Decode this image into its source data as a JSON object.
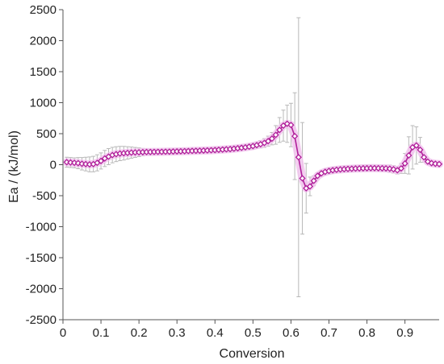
{
  "chart_data": {
    "type": "line",
    "title": "",
    "xlabel": "Conversion",
    "ylabel": "Ea / (kJ/mol)",
    "xlim": [
      0,
      0.99
    ],
    "ylim": [
      -2500,
      2500
    ],
    "x_ticks": [
      "0",
      "0.1",
      "0.2",
      "0.3",
      "0.4",
      "0.5",
      "0.6",
      "0.7",
      "0.8",
      "0.9"
    ],
    "y_ticks": [
      "2500",
      "2000",
      "1500",
      "1000",
      "500",
      "0",
      "-500",
      "-1000",
      "-1500",
      "-2000",
      "-2500"
    ],
    "grid": false,
    "legend": "none",
    "series": [
      {
        "x": [
          0.01,
          0.02,
          0.03,
          0.04,
          0.05,
          0.06,
          0.07,
          0.08,
          0.09,
          0.1,
          0.11,
          0.12,
          0.13,
          0.14,
          0.15,
          0.16,
          0.17,
          0.18,
          0.19,
          0.2,
          0.21,
          0.22,
          0.23,
          0.24,
          0.25,
          0.26,
          0.27,
          0.28,
          0.29,
          0.3,
          0.31,
          0.32,
          0.33,
          0.34,
          0.35,
          0.36,
          0.37,
          0.38,
          0.39,
          0.4,
          0.41,
          0.42,
          0.43,
          0.44,
          0.45,
          0.46,
          0.47,
          0.48,
          0.49,
          0.5,
          0.51,
          0.52,
          0.53,
          0.54,
          0.55,
          0.56,
          0.57,
          0.58,
          0.59,
          0.6,
          0.61,
          0.62,
          0.63,
          0.64,
          0.65,
          0.66,
          0.67,
          0.68,
          0.69,
          0.7,
          0.71,
          0.72,
          0.73,
          0.74,
          0.75,
          0.76,
          0.77,
          0.78,
          0.79,
          0.8,
          0.81,
          0.82,
          0.83,
          0.84,
          0.85,
          0.86,
          0.87,
          0.88,
          0.89,
          0.9,
          0.91,
          0.92,
          0.93,
          0.94,
          0.95,
          0.96,
          0.97,
          0.98,
          0.99
        ],
        "y": [
          40,
          35,
          30,
          25,
          15,
          10,
          5,
          10,
          30,
          60,
          100,
          130,
          155,
          170,
          180,
          185,
          190,
          195,
          198,
          200,
          202,
          204,
          205,
          206,
          207,
          208,
          209,
          210,
          212,
          214,
          216,
          218,
          220,
          222,
          224,
          226,
          228,
          230,
          233,
          236,
          240,
          244,
          248,
          252,
          258,
          265,
          272,
          280,
          290,
          300,
          315,
          330,
          350,
          380,
          420,
          480,
          560,
          630,
          660,
          640,
          460,
          120,
          -220,
          -380,
          -350,
          -260,
          -180,
          -140,
          -115,
          -100,
          -90,
          -82,
          -76,
          -72,
          -68,
          -65,
          -62,
          -60,
          -58,
          -57,
          -56,
          -56,
          -57,
          -58,
          -60,
          -65,
          -75,
          -90,
          -60,
          20,
          150,
          280,
          310,
          240,
          120,
          50,
          25,
          15,
          10
        ],
        "error": [
          80,
          80,
          80,
          90,
          100,
          110,
          120,
          125,
          130,
          130,
          130,
          130,
          125,
          120,
          115,
          110,
          100,
          90,
          80,
          70,
          60,
          50,
          40,
          40,
          40,
          40,
          40,
          40,
          40,
          40,
          40,
          40,
          40,
          40,
          40,
          40,
          40,
          40,
          40,
          40,
          40,
          40,
          40,
          40,
          40,
          40,
          40,
          40,
          40,
          50,
          50,
          60,
          70,
          80,
          100,
          150,
          200,
          250,
          300,
          350,
          700,
          2250,
          900,
          400,
          150,
          80,
          50,
          50,
          50,
          50,
          50,
          50,
          50,
          50,
          50,
          50,
          50,
          50,
          50,
          50,
          50,
          50,
          50,
          50,
          50,
          60,
          60,
          60,
          80,
          160,
          300,
          350,
          300,
          200,
          80,
          40,
          30,
          20,
          20
        ]
      }
    ],
    "colors": {
      "line": "#b0209a",
      "marker_fill": "#ffffff",
      "band": "#f2c6ef",
      "error_bar": "#b8b8b8",
      "axis": "#555555"
    }
  }
}
